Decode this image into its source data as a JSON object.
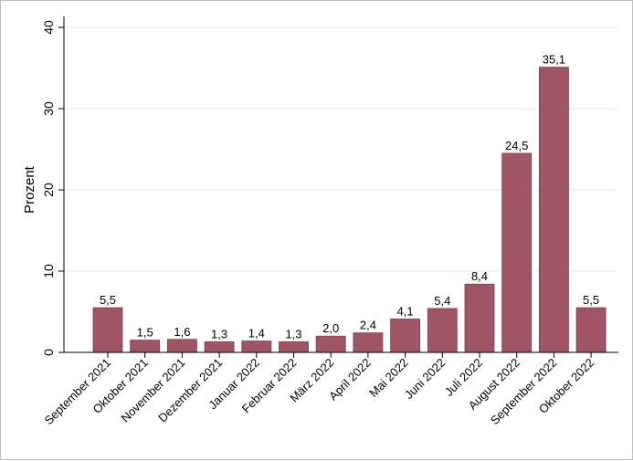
{
  "chart_data": {
    "type": "bar",
    "title": "",
    "xlabel": "",
    "ylabel": "Prozent",
    "ylim": [
      0,
      40
    ],
    "yticks": [
      0,
      10,
      20,
      30,
      40
    ],
    "grid": true,
    "bar_color": "#a05565",
    "categories": [
      "September 2021",
      "Oktober 2021",
      "November 2021",
      "Dezember 2021",
      "Januar 2022",
      "Februar 2022",
      "März 2022",
      "April 2022",
      "Mai 2022",
      "Juni 2022",
      "Juli 2022",
      "August 2022",
      "September 2022",
      "Oktober 2022"
    ],
    "values": [
      5.5,
      1.5,
      1.6,
      1.3,
      1.4,
      1.3,
      2.0,
      2.4,
      4.1,
      5.4,
      8.4,
      24.5,
      35.1,
      5.5
    ],
    "data_labels": [
      "5,5",
      "1,5",
      "1,6",
      "1,3",
      "1,4",
      "1,3",
      "2,0",
      "2,4",
      "4,1",
      "5,4",
      "8,4",
      "24,5",
      "35,1",
      "5,5"
    ]
  }
}
